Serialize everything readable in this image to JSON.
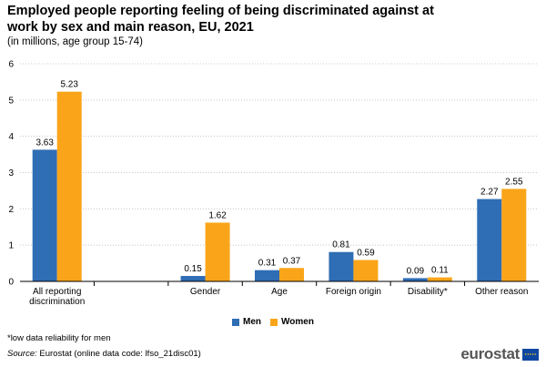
{
  "title": "Employed people reporting feeling of being discriminated against at work by sex and main reason, EU, 2021",
  "subtitle": "(in millions, age group 15-74)",
  "footnote": "*low data reliability for men",
  "source_label": "Source:",
  "source_text": "Eurostat (online data code: lfso_21disc01)",
  "logo_text": "eurostat",
  "chart_data": {
    "type": "bar",
    "categories": [
      "All reporting discrimination",
      "",
      "Gender",
      "Age",
      "Foreign origin",
      "Disability*",
      "Other reason"
    ],
    "category_lines": [
      [
        "All reporting",
        "discrimination"
      ],
      [
        ""
      ],
      [
        "Gender"
      ],
      [
        "Age"
      ],
      [
        "Foreign origin"
      ],
      [
        "Disability*"
      ],
      [
        "Other reason"
      ]
    ],
    "series": [
      {
        "name": "Men",
        "color": "#2f6db5",
        "values": [
          3.63,
          null,
          0.15,
          0.31,
          0.81,
          0.09,
          2.27
        ]
      },
      {
        "name": "Women",
        "color": "#faa519",
        "values": [
          5.23,
          null,
          1.62,
          0.37,
          0.59,
          0.11,
          2.55
        ]
      }
    ],
    "ylim": [
      0,
      6
    ],
    "yticks": [
      0,
      1,
      2,
      3,
      4,
      5,
      6
    ],
    "grid": true,
    "legend": "bottom-center"
  }
}
